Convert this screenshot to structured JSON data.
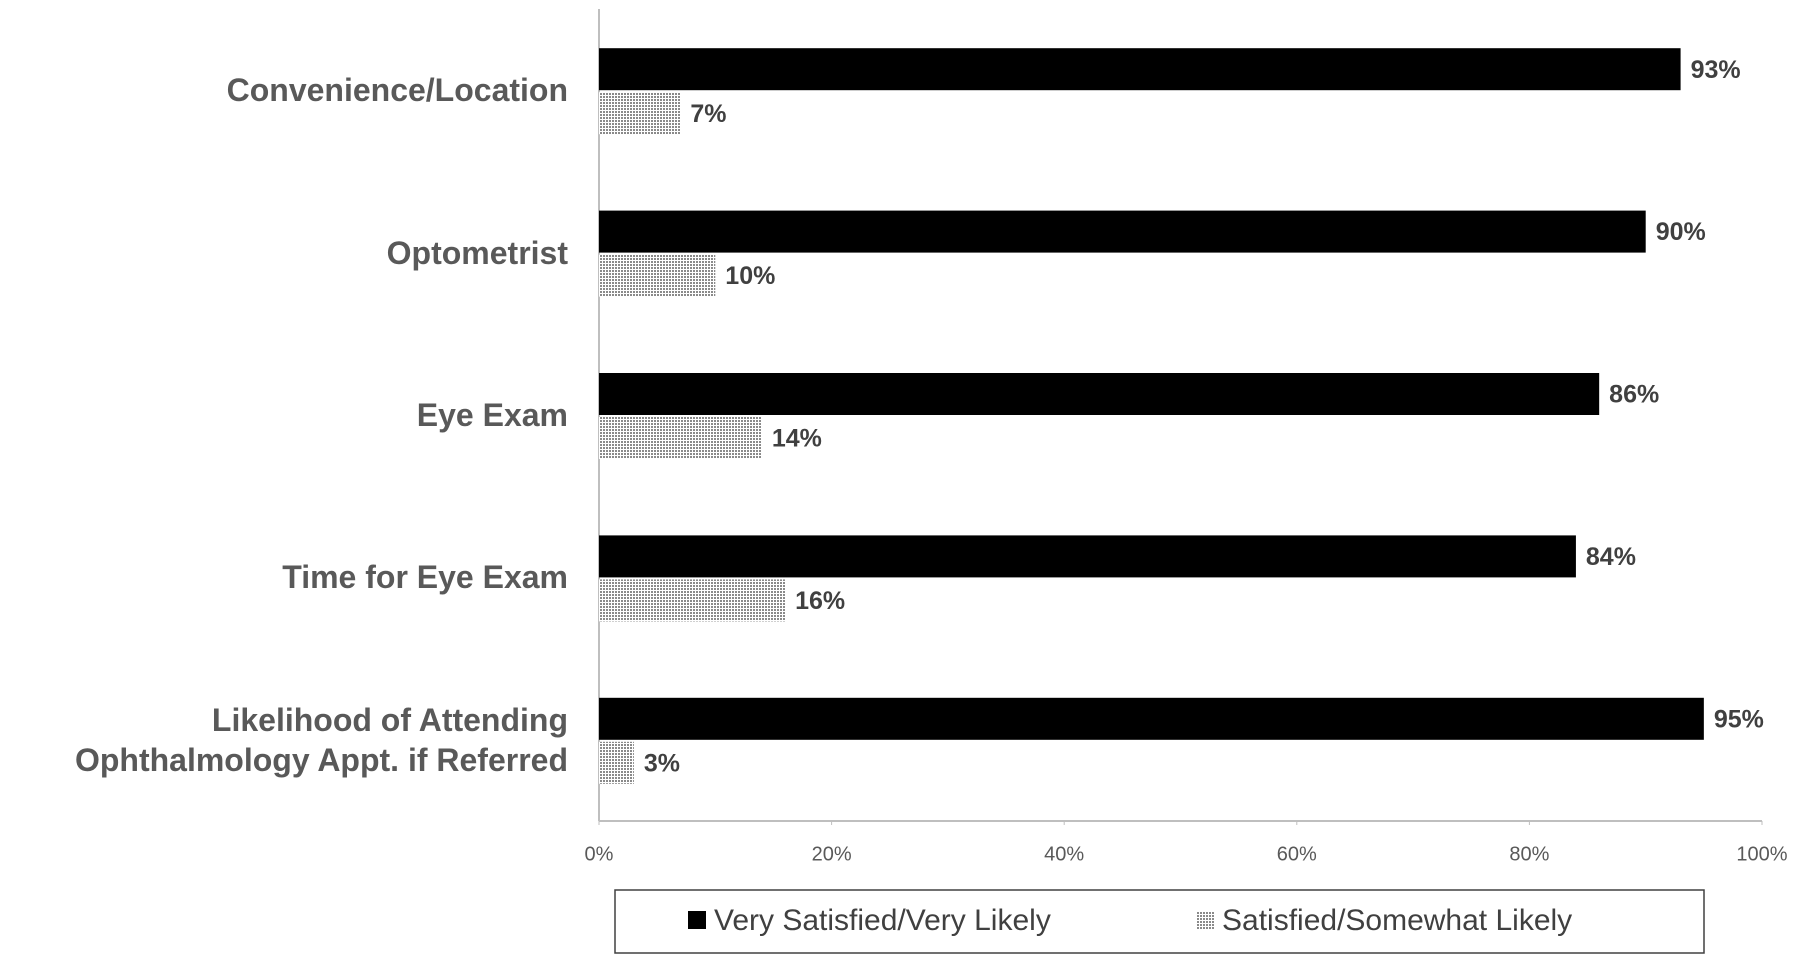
{
  "chart_data": {
    "type": "bar",
    "orientation": "horizontal",
    "categories": [
      "Convenience/Location",
      "Optometrist",
      "Eye Exam",
      "Time for Eye Exam",
      "Likelihood of Attending Ophthalmology Appt. if Referred"
    ],
    "series": [
      {
        "name": "Very Satisfied/Very Likely",
        "color": "#000000",
        "values": [
          93,
          90,
          86,
          84,
          95
        ],
        "value_labels": [
          "93%",
          "90%",
          "86%",
          "84%",
          "95%"
        ]
      },
      {
        "name": "Satisfied/Somewhat Likely",
        "color": "#c8c8c8",
        "values": [
          7,
          10,
          14,
          16,
          3
        ],
        "value_labels": [
          "7%",
          "10%",
          "14%",
          "16%",
          "3%"
        ]
      }
    ],
    "xlim": [
      0,
      100
    ],
    "xticks": [
      {
        "value": 0,
        "label": "0%"
      },
      {
        "value": 20,
        "label": "20%"
      },
      {
        "value": 40,
        "label": "40%"
      },
      {
        "value": 60,
        "label": "60%"
      },
      {
        "value": 80,
        "label": "80%"
      },
      {
        "value": 100,
        "label": "100%"
      }
    ],
    "grid": false,
    "legend": "bottom"
  }
}
